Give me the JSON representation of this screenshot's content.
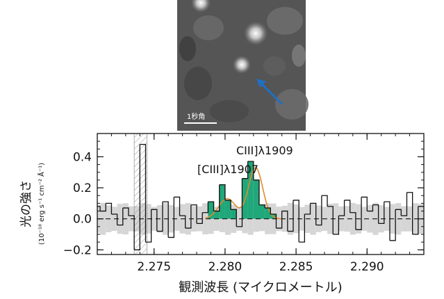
{
  "image_panel": {
    "scale_label": "1秒角",
    "arrow_color": "#1f6fc4"
  },
  "chart_data": {
    "type": "line",
    "style": "step",
    "xlabel": "観測波長 (マイクロメートル)",
    "ylabel_main": "光の強さ",
    "ylabel_units": "(10⁻¹⁸ erg s⁻¹ cm⁻² Å⁻¹)",
    "xlim": [
      2.271,
      2.294
    ],
    "ylim": [
      -0.23,
      0.55
    ],
    "xticks": [
      2.275,
      2.28,
      2.285,
      2.29
    ],
    "xtick_labels": [
      "2.275",
      "2.280",
      "2.285",
      "2.290"
    ],
    "yticks": [
      -0.2,
      0.0,
      0.2,
      0.4
    ],
    "ytick_labels": [
      "−0.2",
      "0.0",
      "0.2",
      "0.4"
    ],
    "zero_line": "dashed",
    "noise_band": "light gray ±1σ",
    "masked_region": [
      2.2736,
      2.2745
    ],
    "annotations": [
      {
        "text": "[CIII]λ1907",
        "x": 2.2802
      },
      {
        "text": "CIII]λ1909",
        "x": 2.2821
      }
    ],
    "colors": {
      "spectrum": "#111111",
      "fill": "#20a77a",
      "fit": "#e08a2c",
      "noise": "#d6d6d6"
    },
    "x": [
      2.271,
      2.2714,
      2.2718,
      2.2722,
      2.2726,
      2.273,
      2.2734,
      2.2738,
      2.2742,
      2.2746,
      2.275,
      2.2754,
      2.2758,
      2.2762,
      2.2766,
      2.277,
      2.2774,
      2.2778,
      2.2782,
      2.2786,
      2.279,
      2.2794,
      2.2798,
      2.2802,
      2.2806,
      2.281,
      2.2814,
      2.2818,
      2.2822,
      2.2826,
      2.283,
      2.2834,
      2.2838,
      2.2842,
      2.2846,
      2.285,
      2.2854,
      2.2858,
      2.2862,
      2.2866,
      2.287,
      2.2874,
      2.2878,
      2.2882,
      2.2886,
      2.289,
      2.2894,
      2.2898,
      2.2902,
      2.2906,
      2.291,
      2.2914,
      2.2918,
      2.2922,
      2.2926,
      2.293,
      2.2934,
      2.2938
    ],
    "flux": [
      0.08,
      0.05,
      0.1,
      0.03,
      -0.04,
      0.07,
      0.02,
      -0.2,
      0.48,
      -0.15,
      0.06,
      -0.08,
      0.11,
      -0.12,
      0.14,
      0.02,
      -0.06,
      0.09,
      -0.03,
      0.04,
      0.11,
      0.05,
      0.22,
      0.12,
      0.06,
      -0.05,
      0.26,
      0.37,
      0.25,
      0.09,
      0.07,
      0.03,
      -0.06,
      0.05,
      -0.08,
      0.12,
      -0.15,
      0.03,
      0.1,
      -0.04,
      0.15,
      0.08,
      -0.1,
      0.02,
      0.12,
      0.04,
      -0.07,
      0.14,
      0.05,
      0.09,
      -0.03,
      0.11,
      -0.14,
      0.06,
      0.02,
      0.17,
      -0.1,
      0.08
    ],
    "emission_ranges": [
      [
        2.279,
        2.2806
      ],
      [
        2.2814,
        2.2834
      ]
    ],
    "fit_lines": [
      {
        "center": 2.28015,
        "amp": 0.13,
        "sigma": 0.0006
      },
      {
        "center": 2.28215,
        "amp": 0.33,
        "sigma": 0.0005
      }
    ],
    "noise_sigma": 0.09
  }
}
